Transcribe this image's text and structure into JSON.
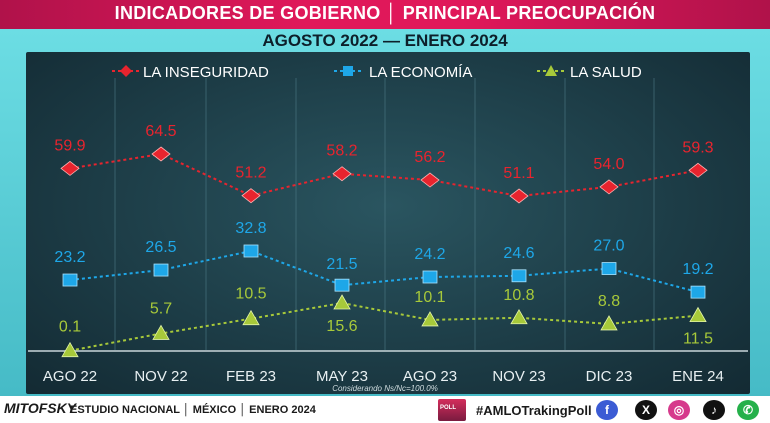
{
  "header": {
    "title": "INDICADORES DE GOBIERNO │ PRINCIPAL PREOCUPACIÓN",
    "subtitle": "AGOSTO 2022 — ENERO 2024"
  },
  "chart_data": {
    "type": "line",
    "categories": [
      "AGO 22",
      "NOV 22",
      "FEB 23",
      "MAY 23",
      "AGO 23",
      "NOV 23",
      "DIC 23",
      "ENE 24"
    ],
    "series": [
      {
        "name": "LA INSEGURIDAD",
        "values": [
          59.9,
          64.5,
          51.2,
          58.2,
          56.2,
          51.1,
          54.0,
          59.3
        ],
        "color": "#e8242e",
        "marker": "diamond"
      },
      {
        "name": "LA ECONOMÍA",
        "values": [
          23.2,
          26.5,
          32.8,
          21.5,
          24.2,
          24.6,
          27.0,
          19.2
        ],
        "color": "#1ea7e8",
        "marker": "square"
      },
      {
        "name": "LA SALUD",
        "values": [
          0.1,
          5.7,
          10.5,
          15.6,
          10.1,
          10.8,
          8.8,
          11.5
        ],
        "color": "#a7c93a",
        "marker": "triangle"
      }
    ],
    "legend_position": "top",
    "grid": "vertical",
    "note": "Considerando Ns/Nc=100.0%"
  },
  "footer": {
    "logo": "MITOFSKY",
    "info": "ESTUDIO NACIONAL  │  MÉXICO  │ ENERO 2024",
    "poll_badge": "POLL",
    "hashtag": "#AMLOTrakingPoll",
    "social": [
      {
        "icon": "facebook-icon",
        "glyph": "f",
        "color": "#3b5bd4"
      },
      {
        "icon": "x-twitter-icon",
        "glyph": "X",
        "color": "#111111"
      },
      {
        "icon": "instagram-icon",
        "glyph": "◎",
        "color": "#d63a8c"
      },
      {
        "icon": "tiktok-icon",
        "glyph": "♪",
        "color": "#111111"
      },
      {
        "icon": "whatsapp-icon",
        "glyph": "✆",
        "color": "#25b04a"
      }
    ]
  }
}
